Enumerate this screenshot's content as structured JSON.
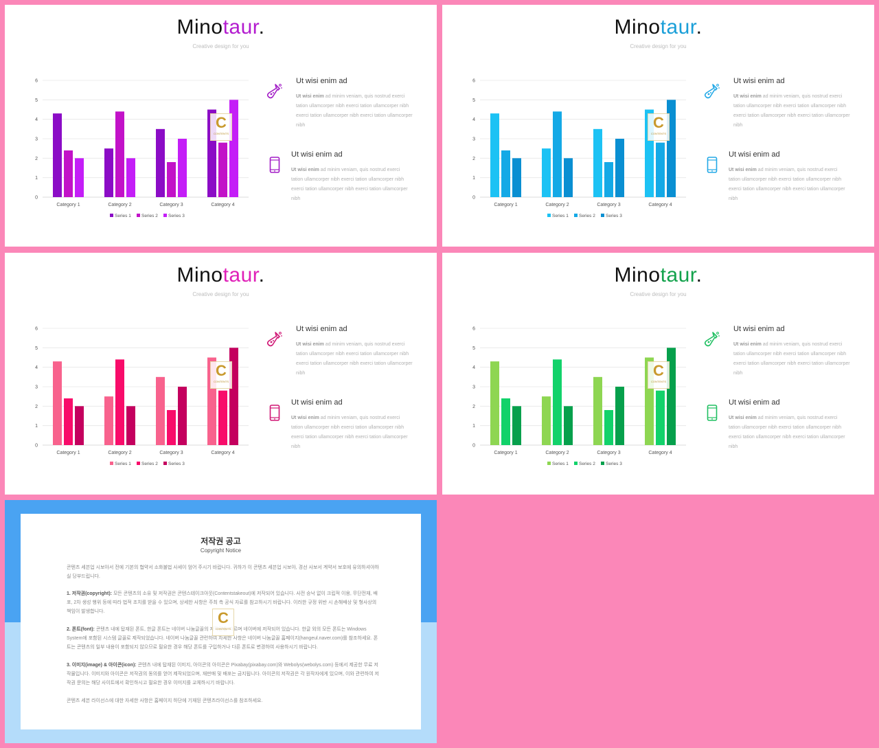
{
  "slides": [
    {
      "brand_prefix": "Mino",
      "brand_suffix": "taur",
      "brand_dot": ".",
      "subtitle": "Creative design for you",
      "accent": "#b31ccf",
      "icon_color": "#a21cc6",
      "series_colors": [
        "#8b0cc6",
        "#c212c8",
        "#c41ef7"
      ],
      "features": [
        {
          "title": "Ut wisi enim ad",
          "lead": "Ut wisi enim",
          "body": "ad minim veniam, quis nostrud exerci tation ullamcorper nibh exerci tation ullamcorper nibh exerci tation ullamcorper nibh exerci tation ullamcorper nibh",
          "icon": "flask-icon"
        },
        {
          "title": "Ut wisi enim ad",
          "lead": "Ut wisi enim",
          "body": "ad minim veniam, quis nostrud exerci tation ullamcorper nibh exerci tation ullamcorper nibh exerci tation ullamcorper nibh exerci tation ullamcorper nibh",
          "icon": "smartphone-icon"
        }
      ]
    },
    {
      "brand_prefix": "Mino",
      "brand_suffix": "taur",
      "brand_dot": ".",
      "subtitle": "Creative design for you",
      "accent": "#1a9fd8",
      "icon_color": "#22a8e6",
      "series_colors": [
        "#1cc2f4",
        "#14a9e6",
        "#0a8fd2"
      ],
      "features": [
        {
          "title": "Ut wisi enim ad",
          "lead": "Ut wisi enim",
          "body": "ad minim veniam, quis nostrud exerci tation ullamcorper nibh exerci tation ullamcorper nibh exerci tation ullamcorper nibh exerci tation ullamcorper nibh",
          "icon": "flask-icon"
        },
        {
          "title": "Ut wisi enim ad",
          "lead": "Ut wisi enim",
          "body": "ad minim veniam, quis nostrud exerci tation ullamcorper nibh exerci tation ullamcorper nibh exerci tation ullamcorper nibh exerci tation ullamcorper nibh",
          "icon": "smartphone-icon"
        }
      ]
    },
    {
      "brand_prefix": "Mino",
      "brand_suffix": "taur",
      "brand_dot": ".",
      "subtitle": "Creative design for you",
      "accent": "#e020b8",
      "icon_color": "#d01574",
      "series_colors": [
        "#f8628d",
        "#f80c6a",
        "#c4005e"
      ],
      "features": [
        {
          "title": "Ut wisi enim ad",
          "lead": "Ut wisi enim",
          "body": "ad minim veniam, quis nostrud exerci tation ullamcorper nibh exerci tation ullamcorper nibh exerci tation ullamcorper nibh exerci tation ullamcorper nibh",
          "icon": "flask-icon"
        },
        {
          "title": "Ut wisi enim ad",
          "lead": "Ut wisi enim",
          "body": "ad minim veniam, quis nostrud exerci tation ullamcorper nibh exerci tation ullamcorper nibh exerci tation ullamcorper nibh exerci tation ullamcorper nibh",
          "icon": "smartphone-icon"
        }
      ]
    },
    {
      "brand_prefix": "Mino",
      "brand_suffix": "taur",
      "brand_dot": ".",
      "subtitle": "Creative design for you",
      "accent": "#13a24c",
      "icon_color": "#1fbf61",
      "series_colors": [
        "#8ed652",
        "#12d26a",
        "#06a04c"
      ],
      "features": [
        {
          "title": "Ut wisi enim ad",
          "lead": "Ut wisi enim",
          "body": "ad minim veniam, quis nostrud exerci tation ullamcorper nibh exerci tation ullamcorper nibh exerci tation ullamcorper nibh exerci tation ullamcorper nibh",
          "icon": "flask-icon"
        },
        {
          "title": "Ut wisi enim ad",
          "lead": "Ut wisi enim",
          "body": "ad minim veniam, quis nostrud exerci tation ullamcorper nibh exerci tation ullamcorper nibh exerci tation ullamcorper nibh exerci tation ullamcorper nibh",
          "icon": "smartphone-icon"
        }
      ]
    }
  ],
  "watermark": {
    "letter": "C",
    "text": "CONTENTS"
  },
  "chart_data": [
    {
      "type": "bar",
      "categories": [
        "Category 1",
        "Category 2",
        "Category 3",
        "Category 4"
      ],
      "series": [
        {
          "name": "Series 1",
          "values": [
            4.3,
            2.5,
            3.5,
            4.5
          ]
        },
        {
          "name": "Series 2",
          "values": [
            2.4,
            4.4,
            1.8,
            2.8
          ]
        },
        {
          "name": "Series 3",
          "values": [
            2,
            2,
            3,
            5
          ]
        }
      ],
      "yticks": [
        "0",
        "1",
        "2",
        "3",
        "4",
        "5",
        "6"
      ],
      "ylim": [
        0,
        6
      ],
      "grid": true,
      "legend": "bottom"
    },
    {
      "type": "bar",
      "categories": [
        "Category 1",
        "Category 2",
        "Category 3",
        "Category 4"
      ],
      "series": [
        {
          "name": "Series 1",
          "values": [
            4.3,
            2.5,
            3.5,
            4.5
          ]
        },
        {
          "name": "Series 2",
          "values": [
            2.4,
            4.4,
            1.8,
            2.8
          ]
        },
        {
          "name": "Series 3",
          "values": [
            2,
            2,
            3,
            5
          ]
        }
      ],
      "yticks": [
        "0",
        "1",
        "2",
        "3",
        "4",
        "5",
        "6"
      ],
      "ylim": [
        0,
        6
      ],
      "grid": true,
      "legend": "bottom"
    },
    {
      "type": "bar",
      "categories": [
        "Category 1",
        "Category 2",
        "Category 3",
        "Category 4"
      ],
      "series": [
        {
          "name": "Series 1",
          "values": [
            4.3,
            2.5,
            3.5,
            4.5
          ]
        },
        {
          "name": "Series 2",
          "values": [
            2.4,
            4.4,
            1.8,
            2.8
          ]
        },
        {
          "name": "Series 3",
          "values": [
            2,
            2,
            3,
            5
          ]
        }
      ],
      "yticks": [
        "0",
        "1",
        "2",
        "3",
        "4",
        "5",
        "6"
      ],
      "ylim": [
        0,
        6
      ],
      "grid": true,
      "legend": "bottom"
    },
    {
      "type": "bar",
      "categories": [
        "Category 1",
        "Category 2",
        "Category 3",
        "Category 4"
      ],
      "series": [
        {
          "name": "Series 1",
          "values": [
            4.3,
            2.5,
            3.5,
            4.5
          ]
        },
        {
          "name": "Series 2",
          "values": [
            2.4,
            4.4,
            1.8,
            2.8
          ]
        },
        {
          "name": "Series 3",
          "values": [
            2,
            2,
            3,
            5
          ]
        }
      ],
      "yticks": [
        "0",
        "1",
        "2",
        "3",
        "4",
        "5",
        "6"
      ],
      "ylim": [
        0,
        6
      ],
      "grid": true,
      "legend": "bottom"
    }
  ],
  "notice": {
    "top_color": "#4aa3f2",
    "bottom_color": "#b4dcfa",
    "title": "저작권 공고",
    "subtitle": "Copyright Notice",
    "intro": "콘텐츠 세븐업 시보아서 전에 기본의 협약서 소화불법 사세이 엄어 주시기 바랍니다. 귀하가 이 콘텐츠 세븐업 시보아, 경선 사보서 계약서 보호에 유의하셔야하실 당부드립니다.",
    "items": [
      {
        "lead": "1. 저작권(copyright):",
        "text": "모든 콘텐츠의 소유 및 저작권은 콘텐스테이크아웃(Contentstakeout)에 저작되어 있습니다. 사전 승낙 없이 크립적 이용, 무단전재, 배포, 2차 생성 행위 등에 따라 법적 조치를 받을 수 있으며, 상세한 사항은 주최 측 공식 자료를 참고하시기 바랍니다. 이러한 규정 위반 시 손해배상 및 형사상의 책임이 발생합니다."
      },
      {
        "lead": "2. 폰트(font):",
        "text": "콘텐츠 내에 탑재된 폰트, 한글 폰트는 네이버 나눔글꼴의 저작권을 따르며 네이버에 저작되어 있습니다. 한글 외의 모든 폰트는 Windows System에 포함된 시스템 글꼴로 제작되었습니다. 네이버 나눔글꼴 관련하여 자세한 사항은 네이버 나눔글꼴 홈페이지(hangeul.naver.com)를 참조하세요. 폰트는 콘텐츠의 일부 내용이 포함되지 않으므로 필요한 경우 해당 폰트를 구입하거나 다른 폰트로 변경하여 사용하시기 바랍니다."
      },
      {
        "lead": "3. 이미지(image) & 아이콘(icon):",
        "text": "콘텐츠 내에 탑재된 이미지, 아이콘의 아이콘은 Pixabay(pixabay.com)와 Webolys(webolys.com) 등에서 제공한 무료 저작물입니다. 이미지와 아이콘은 저작권의 동의를 얻어 제작되었으며, 재판매 및 배포는 금지됩니다. 아이콘의 저작권은 각 원작자에게 있으며, 이와 관련하여 저작권 문의는 해당 사이트에서 확인하시고 필요한 경우 이미지를 교체하시기 바랍니다."
      }
    ],
    "outro": "콘텐츠 세븐 라이선스에 대한 자세한 사항은 홈페이지 하단에 기재된 콘텐츠라이선스를 참조하세요."
  }
}
